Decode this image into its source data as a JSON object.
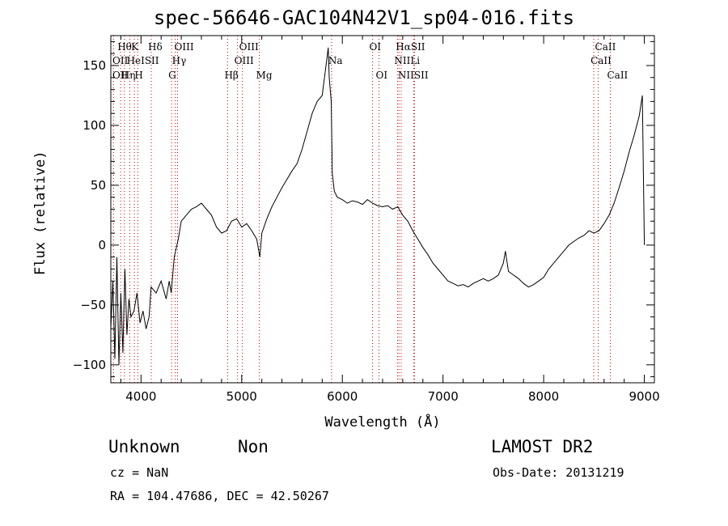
{
  "chart_data": {
    "type": "line",
    "title": "spec-56646-GAC104N42V1_sp04-016.fits",
    "xlabel": "Wavelength (Å)",
    "ylabel": "Flux (relative)",
    "xlim": [
      3700,
      9100
    ],
    "ylim": [
      -115,
      175
    ],
    "xticks": [
      4000,
      5000,
      6000,
      7000,
      8000,
      9000
    ],
    "yticks": [
      -100,
      -50,
      0,
      50,
      100,
      150
    ],
    "grid": false,
    "series": [
      {
        "values": [
          [
            3700,
            -70
          ],
          [
            3720,
            -30
          ],
          [
            3740,
            -95
          ],
          [
            3760,
            -10
          ],
          [
            3780,
            -100
          ],
          [
            3800,
            -40
          ],
          [
            3820,
            -90
          ],
          [
            3840,
            -20
          ],
          [
            3860,
            -75
          ],
          [
            3880,
            -45
          ],
          [
            3900,
            -60
          ],
          [
            3930,
            -55
          ],
          [
            3960,
            -40
          ],
          [
            3990,
            -65
          ],
          [
            4020,
            -55
          ],
          [
            4050,
            -70
          ],
          [
            4080,
            -60
          ],
          [
            4100,
            -35
          ],
          [
            4150,
            -40
          ],
          [
            4200,
            -30
          ],
          [
            4250,
            -45
          ],
          [
            4280,
            -30
          ],
          [
            4300,
            -40
          ],
          [
            4330,
            -10
          ],
          [
            4370,
            5
          ],
          [
            4400,
            20
          ],
          [
            4450,
            25
          ],
          [
            4500,
            30
          ],
          [
            4550,
            32
          ],
          [
            4600,
            35
          ],
          [
            4650,
            30
          ],
          [
            4700,
            25
          ],
          [
            4750,
            15
          ],
          [
            4800,
            10
          ],
          [
            4850,
            12
          ],
          [
            4900,
            20
          ],
          [
            4950,
            22
          ],
          [
            5000,
            15
          ],
          [
            5050,
            18
          ],
          [
            5100,
            12
          ],
          [
            5150,
            5
          ],
          [
            5180,
            -10
          ],
          [
            5200,
            10
          ],
          [
            5250,
            22
          ],
          [
            5300,
            32
          ],
          [
            5350,
            40
          ],
          [
            5400,
            48
          ],
          [
            5450,
            55
          ],
          [
            5500,
            62
          ],
          [
            5550,
            68
          ],
          [
            5600,
            80
          ],
          [
            5650,
            95
          ],
          [
            5700,
            110
          ],
          [
            5750,
            120
          ],
          [
            5800,
            125
          ],
          [
            5830,
            145
          ],
          [
            5860,
            165
          ],
          [
            5870,
            140
          ],
          [
            5890,
            120
          ],
          [
            5900,
            60
          ],
          [
            5920,
            45
          ],
          [
            5950,
            40
          ],
          [
            6000,
            38
          ],
          [
            6050,
            35
          ],
          [
            6100,
            37
          ],
          [
            6150,
            36
          ],
          [
            6200,
            34
          ],
          [
            6250,
            38
          ],
          [
            6300,
            35
          ],
          [
            6350,
            33
          ],
          [
            6400,
            32
          ],
          [
            6450,
            33
          ],
          [
            6500,
            30
          ],
          [
            6550,
            32
          ],
          [
            6600,
            25
          ],
          [
            6650,
            20
          ],
          [
            6700,
            12
          ],
          [
            6750,
            5
          ],
          [
            6800,
            -2
          ],
          [
            6850,
            -8
          ],
          [
            6900,
            -15
          ],
          [
            6950,
            -20
          ],
          [
            7000,
            -25
          ],
          [
            7050,
            -30
          ],
          [
            7100,
            -32
          ],
          [
            7150,
            -34
          ],
          [
            7200,
            -33
          ],
          [
            7250,
            -35
          ],
          [
            7300,
            -32
          ],
          [
            7350,
            -30
          ],
          [
            7400,
            -28
          ],
          [
            7450,
            -30
          ],
          [
            7500,
            -28
          ],
          [
            7550,
            -25
          ],
          [
            7600,
            -15
          ],
          [
            7620,
            -5
          ],
          [
            7650,
            -22
          ],
          [
            7700,
            -25
          ],
          [
            7750,
            -28
          ],
          [
            7800,
            -32
          ],
          [
            7850,
            -35
          ],
          [
            7900,
            -33
          ],
          [
            7950,
            -30
          ],
          [
            8000,
            -27
          ],
          [
            8050,
            -20
          ],
          [
            8100,
            -15
          ],
          [
            8150,
            -10
          ],
          [
            8200,
            -5
          ],
          [
            8250,
            0
          ],
          [
            8300,
            3
          ],
          [
            8350,
            6
          ],
          [
            8400,
            8
          ],
          [
            8450,
            12
          ],
          [
            8500,
            10
          ],
          [
            8550,
            12
          ],
          [
            8600,
            18
          ],
          [
            8650,
            25
          ],
          [
            8700,
            35
          ],
          [
            8750,
            48
          ],
          [
            8800,
            62
          ],
          [
            8850,
            78
          ],
          [
            8900,
            92
          ],
          [
            8950,
            108
          ],
          [
            8980,
            125
          ],
          [
            9000,
            0
          ]
        ]
      }
    ],
    "spectral_lines": [
      {
        "label": "Hθ",
        "x": 3798,
        "row": 0
      },
      {
        "label": "K",
        "x": 3934,
        "row": 0
      },
      {
        "label": "Hδ",
        "x": 4102,
        "row": 0
      },
      {
        "label": "OIII",
        "x": 4363,
        "row": 0
      },
      {
        "label": "OIII",
        "x": 5007,
        "row": 0
      },
      {
        "label": "OI",
        "x": 6300,
        "row": 0
      },
      {
        "label": "HαSII",
        "x": 6563,
        "row": 0
      },
      {
        "label": "CaII",
        "x": 8542,
        "row": 0
      },
      {
        "label": "OII",
        "x": 3727,
        "row": 1
      },
      {
        "label": "HeISII",
        "x": 3889,
        "row": 1
      },
      {
        "label": "Hγ",
        "x": 4340,
        "row": 1
      },
      {
        "label": "OIII",
        "x": 4959,
        "row": 1
      },
      {
        "label": "Na",
        "x": 5893,
        "row": 1
      },
      {
        "label": "NII",
        "x": 6548,
        "row": 1
      },
      {
        "label": "Li",
        "x": 6708,
        "row": 1
      },
      {
        "label": "CaII",
        "x": 8498,
        "row": 1
      },
      {
        "label": "OII",
        "x": 3727,
        "row": 2
      },
      {
        "label": "Hη",
        "x": 3835,
        "row": 2
      },
      {
        "label": "H",
        "x": 3968,
        "row": 2
      },
      {
        "label": "G",
        "x": 4304,
        "row": 2
      },
      {
        "label": "Hβ",
        "x": 4861,
        "row": 2
      },
      {
        "label": "Mg",
        "x": 5175,
        "row": 2
      },
      {
        "label": "OI",
        "x": 6364,
        "row": 2
      },
      {
        "label": "NIISII",
        "x": 6584,
        "row": 2
      },
      {
        "label": "CaII",
        "x": 8662,
        "row": 2
      }
    ],
    "line_markers": [
      3727,
      3798,
      3835,
      3889,
      3934,
      3968,
      4102,
      4304,
      4340,
      4363,
      4861,
      4959,
      5007,
      5175,
      5893,
      6300,
      6364,
      6548,
      6563,
      6584,
      6708,
      6717,
      8498,
      8542,
      8662
    ]
  },
  "footer": {
    "class_label": "Unknown",
    "subclass_label": "Non",
    "survey": "LAMOST DR2",
    "cz": "cz = NaN",
    "obs_date": "Obs-Date: 20131219",
    "coords": "RA = 104.47686, DEC =  42.50267"
  },
  "colors": {
    "line": "#000000",
    "marker": "#cc0000"
  }
}
